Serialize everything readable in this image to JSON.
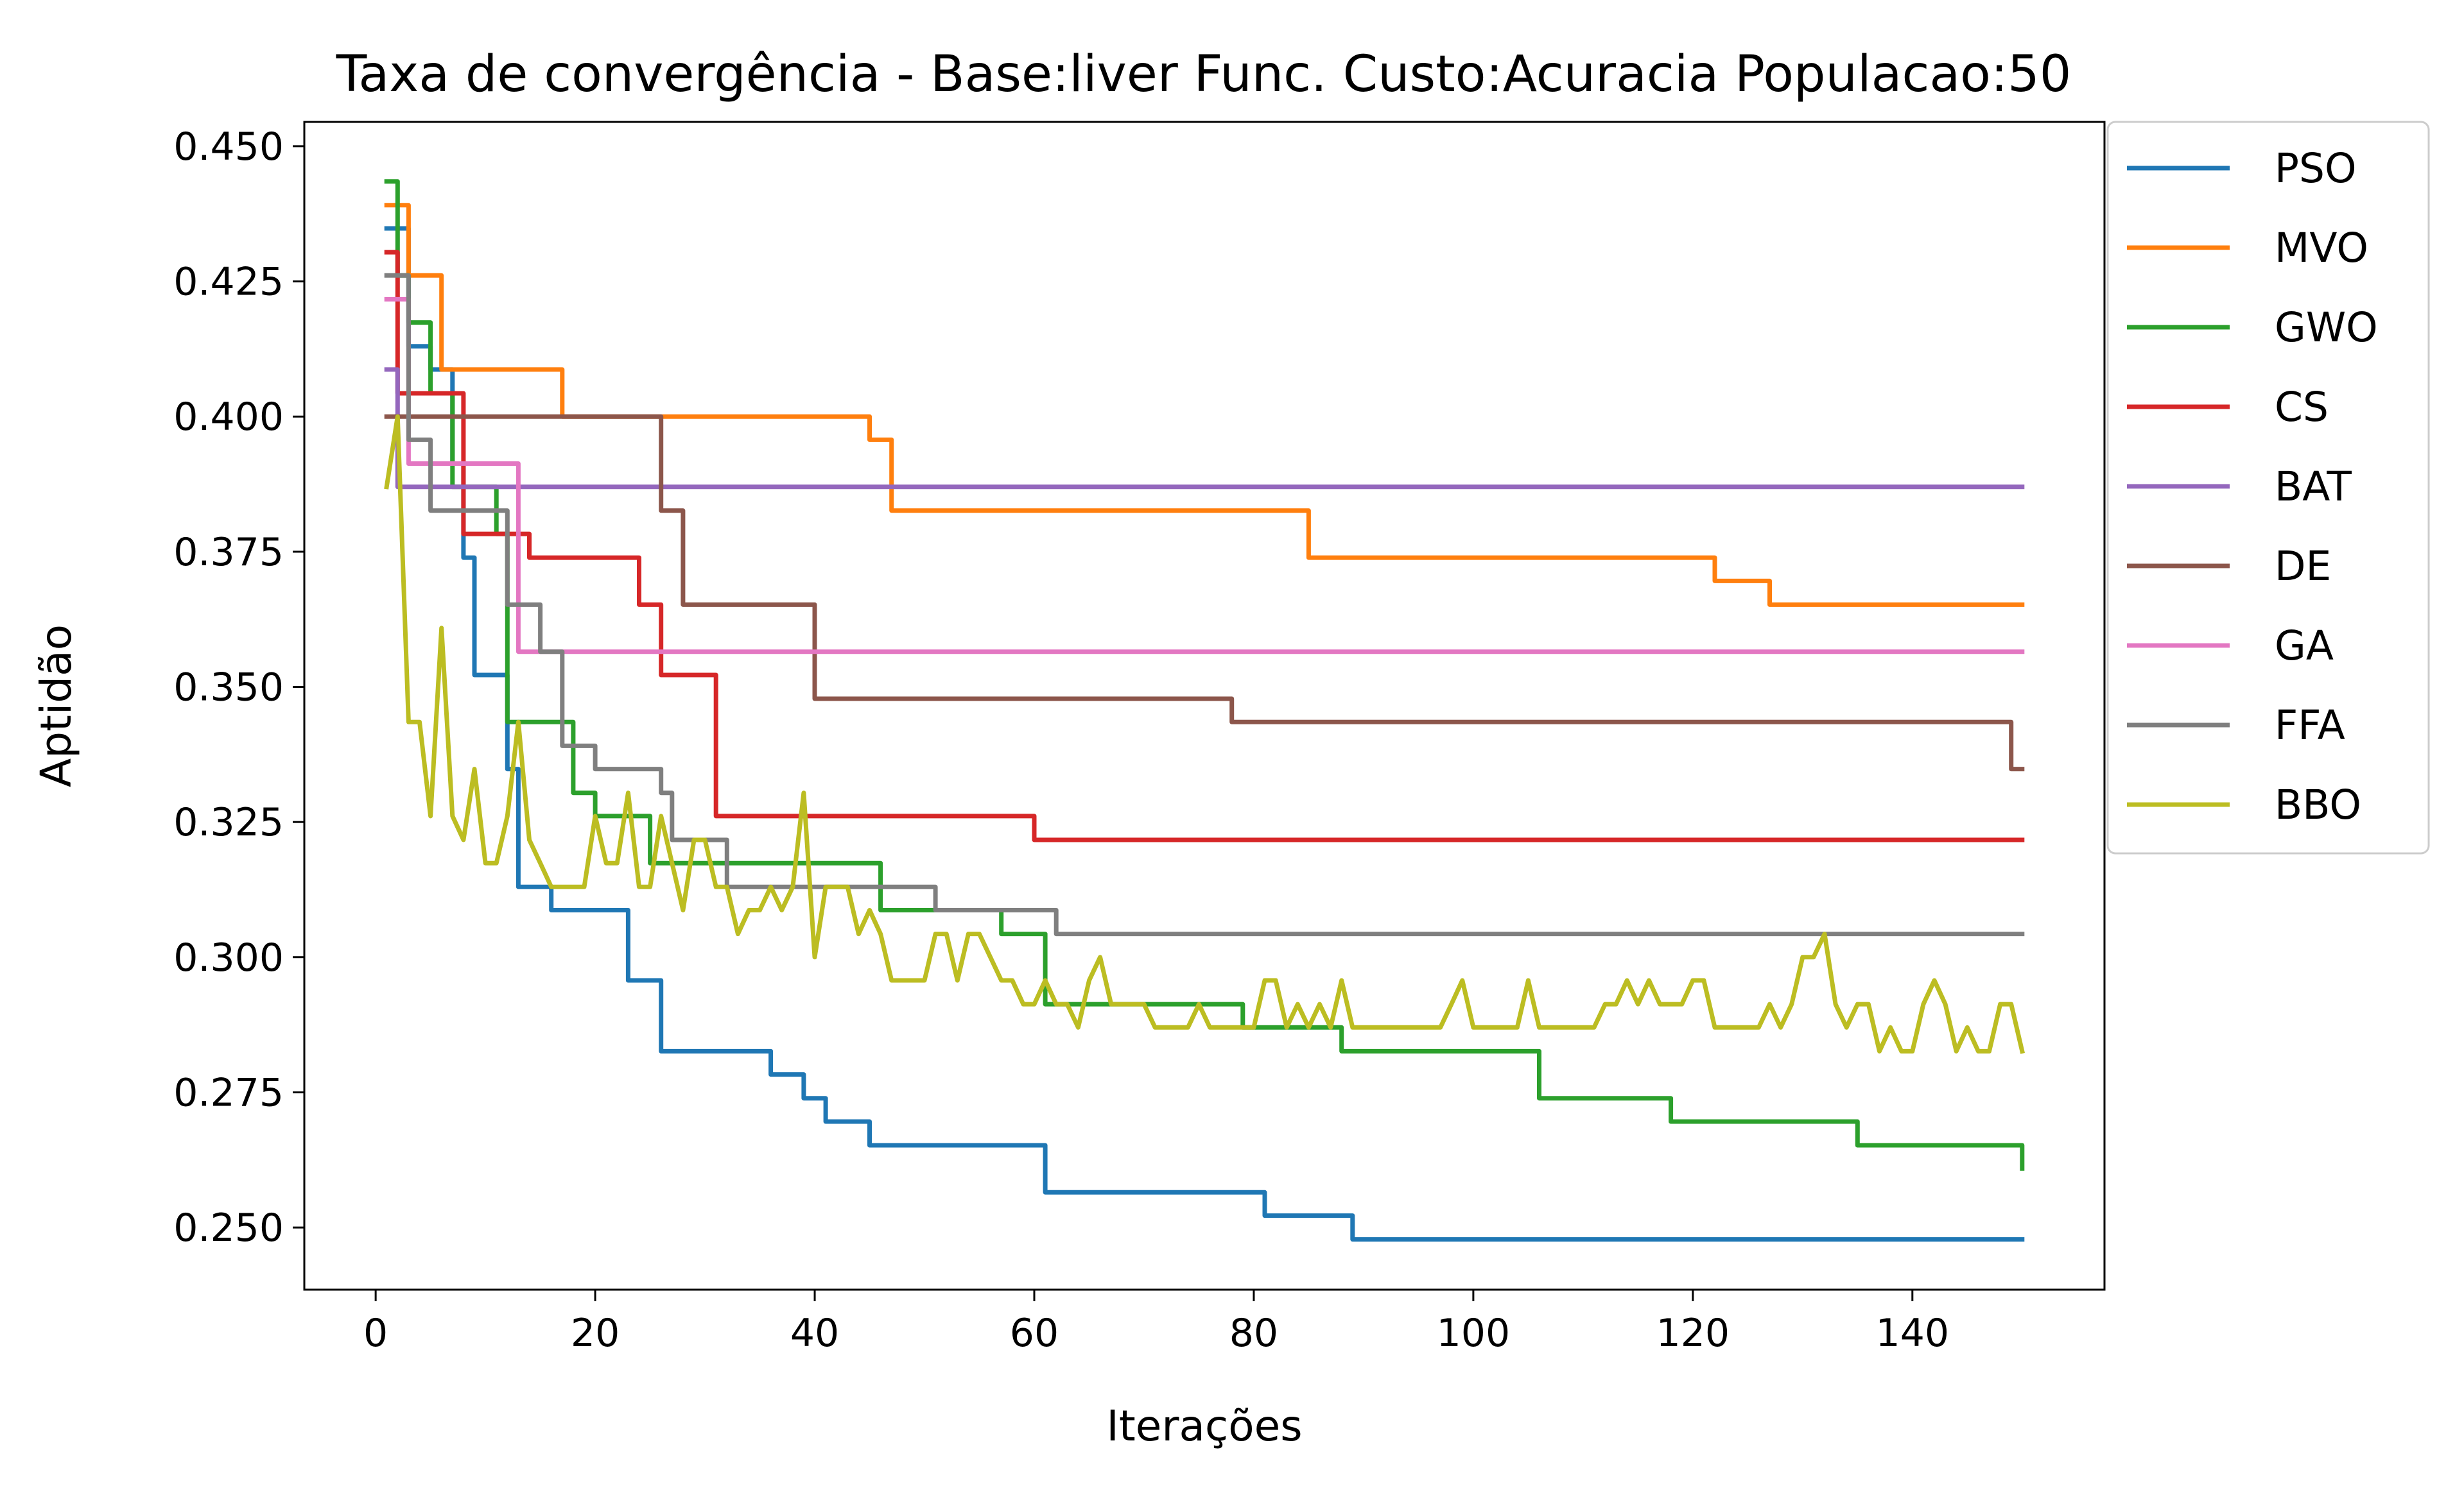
{
  "chart_data": {
    "type": "line",
    "title": "Taxa de convergência - Base:liver Func. Custo:Acuracia Populacao:50",
    "xlabel": "Iterações",
    "ylabel": "Aptidão",
    "xlim": [
      -6.5,
      157.5
    ],
    "ylim": [
      0.2385,
      0.4545
    ],
    "xticks": [
      0,
      20,
      40,
      60,
      80,
      100,
      120,
      140
    ],
    "xtick_labels": [
      "0",
      "20",
      "40",
      "60",
      "80",
      "100",
      "120",
      "140"
    ],
    "yticks": [
      0.25,
      0.275,
      0.3,
      0.325,
      0.35,
      0.375,
      0.4,
      0.425,
      0.45
    ],
    "ytick_labels": [
      "0.250",
      "0.275",
      "0.300",
      "0.325",
      "0.350",
      "0.375",
      "0.400",
      "0.425",
      "0.450"
    ],
    "grid": false,
    "legend_position": "outside-right-top",
    "series": [
      {
        "name": "PSO",
        "color": "#1f77b4",
        "steps": [
          [
            1,
            0.4348
          ],
          [
            3,
            0.413
          ],
          [
            5,
            0.4087
          ],
          [
            7,
            0.3913
          ],
          [
            8,
            0.3739
          ],
          [
            9,
            0.3522
          ],
          [
            12,
            0.3348
          ],
          [
            13,
            0.313
          ],
          [
            16,
            0.3087
          ],
          [
            23,
            0.2957
          ],
          [
            26,
            0.2826
          ],
          [
            36,
            0.2783
          ],
          [
            39,
            0.2739
          ],
          [
            41,
            0.2696
          ],
          [
            45,
            0.2652
          ],
          [
            61,
            0.2565
          ],
          [
            81,
            0.2522
          ],
          [
            89,
            0.2478
          ],
          [
            150,
            0.2478
          ]
        ]
      },
      {
        "name": "MVO",
        "color": "#ff7f0e",
        "steps": [
          [
            1,
            0.4391
          ],
          [
            3,
            0.4261
          ],
          [
            6,
            0.4087
          ],
          [
            17,
            0.4
          ],
          [
            45,
            0.3957
          ],
          [
            47,
            0.3826
          ],
          [
            85,
            0.3739
          ],
          [
            122,
            0.3696
          ],
          [
            127,
            0.3652
          ],
          [
            150,
            0.3652
          ]
        ]
      },
      {
        "name": "GWO",
        "color": "#2ca02c",
        "steps": [
          [
            1,
            0.4435
          ],
          [
            2,
            0.4261
          ],
          [
            3,
            0.4174
          ],
          [
            5,
            0.4043
          ],
          [
            7,
            0.387
          ],
          [
            11,
            0.3783
          ],
          [
            12,
            0.3435
          ],
          [
            18,
            0.3304
          ],
          [
            20,
            0.3261
          ],
          [
            25,
            0.3174
          ],
          [
            46,
            0.3087
          ],
          [
            57,
            0.3043
          ],
          [
            61,
            0.2913
          ],
          [
            79,
            0.287
          ],
          [
            88,
            0.2826
          ],
          [
            106,
            0.2739
          ],
          [
            118,
            0.2696
          ],
          [
            135,
            0.2652
          ],
          [
            150,
            0.2609
          ]
        ]
      },
      {
        "name": "CS",
        "color": "#d62728",
        "steps": [
          [
            1,
            0.4304
          ],
          [
            2,
            0.4043
          ],
          [
            8,
            0.3783
          ],
          [
            14,
            0.3739
          ],
          [
            24,
            0.3652
          ],
          [
            26,
            0.3522
          ],
          [
            31,
            0.3261
          ],
          [
            60,
            0.3217
          ],
          [
            150,
            0.3217
          ]
        ]
      },
      {
        "name": "BAT",
        "color": "#9467bd",
        "steps": [
          [
            1,
            0.4087
          ],
          [
            2,
            0.387
          ],
          [
            150,
            0.387
          ]
        ]
      },
      {
        "name": "DE",
        "color": "#8c564b",
        "steps": [
          [
            1,
            0.4
          ],
          [
            26,
            0.3826
          ],
          [
            28,
            0.3652
          ],
          [
            40,
            0.3478
          ],
          [
            78,
            0.3435
          ],
          [
            149,
            0.3348
          ],
          [
            150,
            0.3348
          ]
        ]
      },
      {
        "name": "GA",
        "color": "#e377c2",
        "steps": [
          [
            1,
            0.4217
          ],
          [
            3,
            0.3913
          ],
          [
            13,
            0.3565
          ],
          [
            150,
            0.3565
          ]
        ]
      },
      {
        "name": "FFA",
        "color": "#7f7f7f",
        "steps": [
          [
            1,
            0.4261
          ],
          [
            3,
            0.3957
          ],
          [
            5,
            0.3826
          ],
          [
            8,
            0.3826
          ],
          [
            12,
            0.3652
          ],
          [
            15,
            0.3565
          ],
          [
            17,
            0.3391
          ],
          [
            20,
            0.3348
          ],
          [
            26,
            0.3304
          ],
          [
            27,
            0.3217
          ],
          [
            32,
            0.313
          ],
          [
            51,
            0.3087
          ],
          [
            62,
            0.3043
          ],
          [
            150,
            0.3043
          ]
        ]
      },
      {
        "name": "BBO",
        "color": "#bcbd22",
        "points": [
          [
            1,
            0.387
          ],
          [
            2,
            0.4
          ],
          [
            3,
            0.3435
          ],
          [
            4,
            0.3435
          ],
          [
            5,
            0.3261
          ],
          [
            6,
            0.3609
          ],
          [
            7,
            0.3261
          ],
          [
            8,
            0.3217
          ],
          [
            9,
            0.3348
          ],
          [
            10,
            0.3174
          ],
          [
            11,
            0.3174
          ],
          [
            12,
            0.3261
          ],
          [
            13,
            0.3435
          ],
          [
            14,
            0.3217
          ],
          [
            15,
            0.3174
          ],
          [
            16,
            0.313
          ],
          [
            17,
            0.313
          ],
          [
            18,
            0.313
          ],
          [
            19,
            0.313
          ],
          [
            20,
            0.3261
          ],
          [
            21,
            0.3174
          ],
          [
            22,
            0.3174
          ],
          [
            23,
            0.3304
          ],
          [
            24,
            0.313
          ],
          [
            25,
            0.313
          ],
          [
            26,
            0.3261
          ],
          [
            27,
            0.3174
          ],
          [
            28,
            0.3087
          ],
          [
            29,
            0.3217
          ],
          [
            30,
            0.3217
          ],
          [
            31,
            0.313
          ],
          [
            32,
            0.313
          ],
          [
            33,
            0.3043
          ],
          [
            34,
            0.3087
          ],
          [
            35,
            0.3087
          ],
          [
            36,
            0.313
          ],
          [
            37,
            0.3087
          ],
          [
            38,
            0.313
          ],
          [
            39,
            0.3304
          ],
          [
            40,
            0.3
          ],
          [
            41,
            0.313
          ],
          [
            42,
            0.313
          ],
          [
            43,
            0.313
          ],
          [
            44,
            0.3043
          ],
          [
            45,
            0.3087
          ],
          [
            46,
            0.3043
          ],
          [
            47,
            0.2957
          ],
          [
            48,
            0.2957
          ],
          [
            49,
            0.2957
          ],
          [
            50,
            0.2957
          ],
          [
            51,
            0.3043
          ],
          [
            52,
            0.3043
          ],
          [
            53,
            0.2957
          ],
          [
            54,
            0.3043
          ],
          [
            55,
            0.3043
          ],
          [
            56,
            0.3
          ],
          [
            57,
            0.2957
          ],
          [
            58,
            0.2957
          ],
          [
            59,
            0.2913
          ],
          [
            60,
            0.2913
          ],
          [
            61,
            0.2957
          ],
          [
            62,
            0.2913
          ],
          [
            63,
            0.2913
          ],
          [
            64,
            0.287
          ],
          [
            65,
            0.2957
          ],
          [
            66,
            0.3
          ],
          [
            67,
            0.2913
          ],
          [
            68,
            0.2913
          ],
          [
            69,
            0.2913
          ],
          [
            70,
            0.2913
          ],
          [
            71,
            0.287
          ],
          [
            72,
            0.287
          ],
          [
            73,
            0.287
          ],
          [
            74,
            0.287
          ],
          [
            75,
            0.2913
          ],
          [
            76,
            0.287
          ],
          [
            77,
            0.287
          ],
          [
            78,
            0.287
          ],
          [
            79,
            0.287
          ],
          [
            80,
            0.287
          ],
          [
            81,
            0.2957
          ],
          [
            82,
            0.2957
          ],
          [
            83,
            0.287
          ],
          [
            84,
            0.2913
          ],
          [
            85,
            0.287
          ],
          [
            86,
            0.2913
          ],
          [
            87,
            0.287
          ],
          [
            88,
            0.2957
          ],
          [
            89,
            0.287
          ],
          [
            90,
            0.287
          ],
          [
            91,
            0.287
          ],
          [
            92,
            0.287
          ],
          [
            93,
            0.287
          ],
          [
            94,
            0.287
          ],
          [
            95,
            0.287
          ],
          [
            96,
            0.287
          ],
          [
            97,
            0.287
          ],
          [
            98,
            0.2913
          ],
          [
            99,
            0.2957
          ],
          [
            100,
            0.287
          ],
          [
            101,
            0.287
          ],
          [
            102,
            0.287
          ],
          [
            103,
            0.287
          ],
          [
            104,
            0.287
          ],
          [
            105,
            0.2957
          ],
          [
            106,
            0.287
          ],
          [
            107,
            0.287
          ],
          [
            108,
            0.287
          ],
          [
            109,
            0.287
          ],
          [
            110,
            0.287
          ],
          [
            111,
            0.287
          ],
          [
            112,
            0.2913
          ],
          [
            113,
            0.2913
          ],
          [
            114,
            0.2957
          ],
          [
            115,
            0.2913
          ],
          [
            116,
            0.2957
          ],
          [
            117,
            0.2913
          ],
          [
            118,
            0.2913
          ],
          [
            119,
            0.2913
          ],
          [
            120,
            0.2957
          ],
          [
            121,
            0.2957
          ],
          [
            122,
            0.287
          ],
          [
            123,
            0.287
          ],
          [
            124,
            0.287
          ],
          [
            125,
            0.287
          ],
          [
            126,
            0.287
          ],
          [
            127,
            0.2913
          ],
          [
            128,
            0.287
          ],
          [
            129,
            0.2913
          ],
          [
            130,
            0.3
          ],
          [
            131,
            0.3
          ],
          [
            132,
            0.3043
          ],
          [
            133,
            0.2913
          ],
          [
            134,
            0.287
          ],
          [
            135,
            0.2913
          ],
          [
            136,
            0.2913
          ],
          [
            137,
            0.2826
          ],
          [
            138,
            0.287
          ],
          [
            139,
            0.2826
          ],
          [
            140,
            0.2826
          ],
          [
            141,
            0.2913
          ],
          [
            142,
            0.2957
          ],
          [
            143,
            0.2913
          ],
          [
            144,
            0.2826
          ],
          [
            145,
            0.287
          ],
          [
            146,
            0.2826
          ],
          [
            147,
            0.2826
          ],
          [
            148,
            0.2913
          ],
          [
            149,
            0.2913
          ],
          [
            150,
            0.2826
          ]
        ]
      }
    ]
  }
}
